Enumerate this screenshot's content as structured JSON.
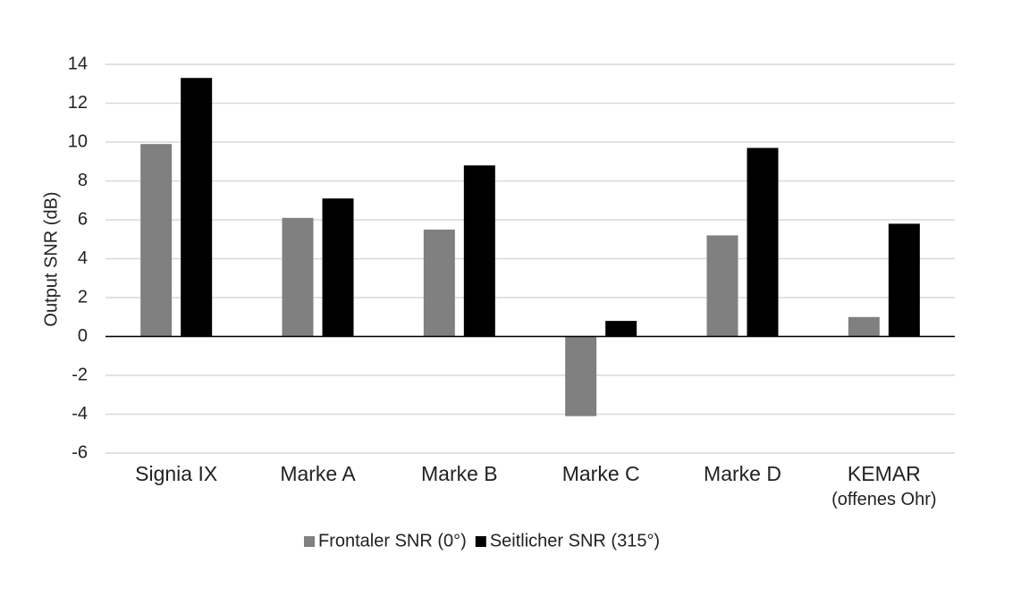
{
  "chart_data": {
    "type": "bar",
    "categories": [
      "Signia IX",
      "Marke A",
      "Marke B",
      "Marke C",
      "Marke D",
      "KEMAR\n(offenes Ohr)"
    ],
    "series": [
      {
        "name": "Frontaler SNR (0°)",
        "color": "#808080",
        "values": [
          9.9,
          6.1,
          5.5,
          -4.1,
          5.2,
          1.0
        ]
      },
      {
        "name": "Seitlicher SNR (315°)",
        "color": "#000000",
        "values": [
          13.3,
          7.1,
          8.8,
          0.8,
          9.7,
          5.8
        ]
      }
    ],
    "y_label": "Output SNR (dB)",
    "ylim": [
      -6,
      14
    ],
    "yticks": [
      -6,
      -4,
      -2,
      0,
      2,
      4,
      6,
      8,
      10,
      12,
      14
    ],
    "grid": true,
    "legend": "bottom"
  }
}
